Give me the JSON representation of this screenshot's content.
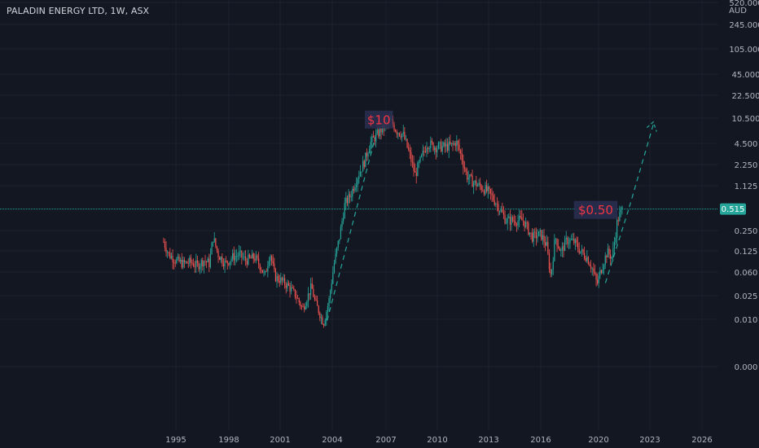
{
  "header": {
    "title": "PALADIN ENERGY LTD, 1W, ASX"
  },
  "chart_data": {
    "type": "candlestick",
    "y_scale": "log",
    "currency": "AUD",
    "y_ticks": [
      "520.000",
      "245.000",
      "105.000",
      "45.000",
      "22.500",
      "10.500",
      "4.500",
      "2.250",
      "1.125",
      "0.250",
      "0.125",
      "0.060",
      "0.025",
      "0.010",
      "0.000"
    ],
    "x_ticks": [
      "1995",
      "1998",
      "2001",
      "2004",
      "2007",
      "2010",
      "2013",
      "2016",
      "2020",
      "2023",
      "2026"
    ],
    "current_price": "0.515",
    "annotations": [
      {
        "text": "$10",
        "year": 2006.6,
        "price": 10
      },
      {
        "text": "$0.50",
        "year": 2019.8,
        "price": 0.5
      }
    ],
    "trend_projections": [
      {
        "from": [
          2003.7,
          0.0095
        ],
        "to": [
          2006.4,
          5.5
        ]
      },
      {
        "from": [
          2020.4,
          0.04
        ],
        "to": [
          2021.8,
          0.55
        ]
      },
      {
        "from": [
          2021.8,
          0.55
        ],
        "to": [
          2023.2,
          8.5
        ]
      }
    ],
    "price_path": [
      [
        1994.3,
        0.17
      ],
      [
        1994.6,
        0.11
      ],
      [
        1995.0,
        0.09
      ],
      [
        1995.4,
        0.08
      ],
      [
        1995.8,
        0.085
      ],
      [
        1996.2,
        0.075
      ],
      [
        1996.6,
        0.09
      ],
      [
        1996.9,
        0.08
      ],
      [
        1997.1,
        0.2
      ],
      [
        1997.4,
        0.11
      ],
      [
        1997.8,
        0.08
      ],
      [
        1998.2,
        0.1
      ],
      [
        1998.6,
        0.11
      ],
      [
        1999.0,
        0.09
      ],
      [
        1999.5,
        0.1
      ],
      [
        1999.9,
        0.07
      ],
      [
        2000.1,
        0.05
      ],
      [
        2000.4,
        0.12
      ],
      [
        2000.7,
        0.05
      ],
      [
        2001.0,
        0.045
      ],
      [
        2001.5,
        0.035
      ],
      [
        2001.9,
        0.025
      ],
      [
        2002.3,
        0.015
      ],
      [
        2002.6,
        0.025
      ],
      [
        2002.8,
        0.035
      ],
      [
        2003.0,
        0.02
      ],
      [
        2003.3,
        0.012
      ],
      [
        2003.5,
        0.0085
      ],
      [
        2003.8,
        0.02
      ],
      [
        2004.1,
        0.08
      ],
      [
        2004.4,
        0.2
      ],
      [
        2004.7,
        0.6
      ],
      [
        2005.0,
        0.8
      ],
      [
        2005.4,
        1.5
      ],
      [
        2005.8,
        2.5
      ],
      [
        2006.1,
        4.5
      ],
      [
        2006.5,
        6
      ],
      [
        2006.9,
        8
      ],
      [
        2007.3,
        9.5
      ],
      [
        2007.6,
        7
      ],
      [
        2008.0,
        6
      ],
      [
        2008.4,
        3
      ],
      [
        2008.7,
        1.6
      ],
      [
        2009.0,
        2.5
      ],
      [
        2009.4,
        4.5
      ],
      [
        2009.9,
        4
      ],
      [
        2010.4,
        4
      ],
      [
        2010.9,
        4.2
      ],
      [
        2011.1,
        4.8
      ],
      [
        2011.4,
        3
      ],
      [
        2011.7,
        1.6
      ],
      [
        2012.0,
        1.3
      ],
      [
        2012.5,
        1.1
      ],
      [
        2013.0,
        0.9
      ],
      [
        2013.5,
        0.6
      ],
      [
        2014.0,
        0.35
      ],
      [
        2014.5,
        0.35
      ],
      [
        2015.0,
        0.35
      ],
      [
        2015.5,
        0.2
      ],
      [
        2016.0,
        0.22
      ],
      [
        2016.4,
        0.15
      ],
      [
        2016.7,
        0.05
      ],
      [
        2017.0,
        0.2
      ],
      [
        2017.4,
        0.12
      ],
      [
        2017.8,
        0.18
      ],
      [
        2018.3,
        0.17
      ],
      [
        2018.8,
        0.12
      ],
      [
        2019.2,
        0.1
      ],
      [
        2019.6,
        0.065
      ],
      [
        2019.9,
        0.038
      ],
      [
        2020.1,
        0.06
      ],
      [
        2020.5,
        0.12
      ],
      [
        2020.8,
        0.1
      ],
      [
        2021.1,
        0.35
      ],
      [
        2021.4,
        0.52
      ]
    ]
  }
}
